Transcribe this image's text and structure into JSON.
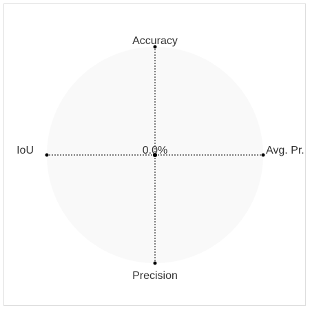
{
  "chart_data": {
    "type": "radar",
    "axes": [
      "Accuracy",
      "Avg. Pr.",
      "Precision",
      "IoU"
    ],
    "series": [
      {
        "values": [
          0,
          0,
          0,
          0
        ]
      }
    ],
    "center_label": "0.0%",
    "rlim": [
      0,
      100
    ],
    "grid": "dotted",
    "colors": {
      "area": "#f9f9f9",
      "axis_line": "#000000",
      "marker": "#000000",
      "text": "#333333",
      "frame": "#dedede"
    }
  }
}
